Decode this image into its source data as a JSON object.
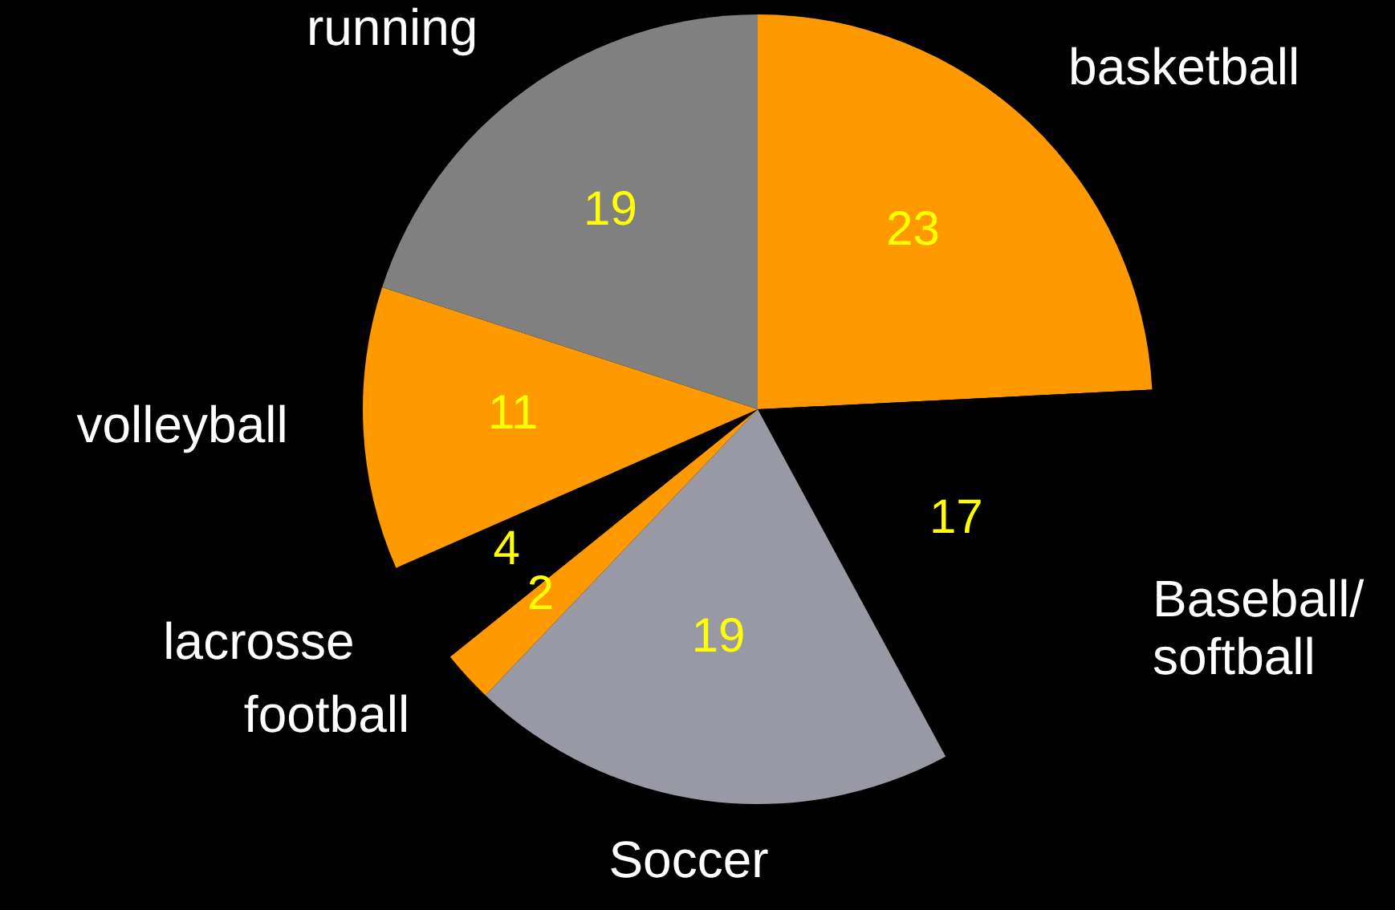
{
  "chart_data": {
    "type": "pie",
    "categories": [
      "basketball",
      "Baseball/softball",
      "Soccer",
      "football",
      "lacrosse",
      "volleyball",
      "running"
    ],
    "values": [
      23,
      17,
      19,
      2,
      4,
      11,
      19
    ],
    "colors": [
      "#ff9900",
      "#000000",
      "#9999a6",
      "#ff9900",
      "#000000",
      "#ff9900",
      "#808080"
    ],
    "data_labels": true
  }
}
